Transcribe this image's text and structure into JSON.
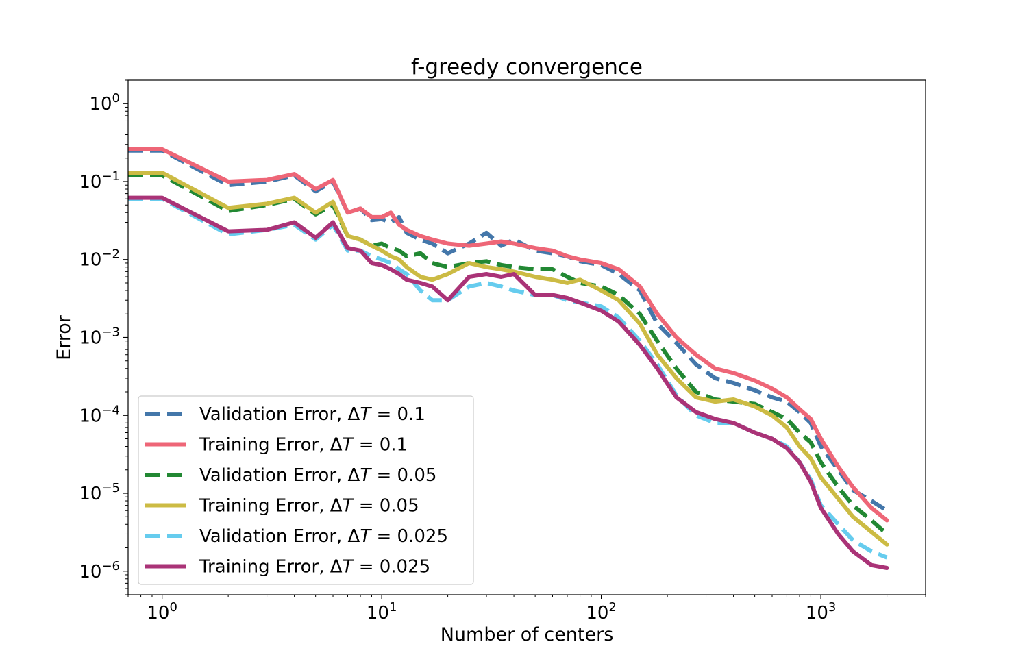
{
  "chart_data": {
    "type": "line",
    "title": "f-greedy convergence",
    "xlabel": "Number of centers",
    "ylabel": "Error",
    "xscale": "log",
    "yscale": "log",
    "xlim": [
      0.7,
      3000
    ],
    "ylim": [
      5e-07,
      2
    ],
    "x_ticks": [
      {
        "value": 1,
        "base": "10",
        "exp": "0"
      },
      {
        "value": 10,
        "base": "10",
        "exp": "1"
      },
      {
        "value": 100,
        "base": "10",
        "exp": "2"
      },
      {
        "value": 1000,
        "base": "10",
        "exp": "3"
      }
    ],
    "y_ticks": [
      {
        "value": 1,
        "base": "10",
        "exp": "0"
      },
      {
        "value": 0.1,
        "base": "10",
        "exp": "−1"
      },
      {
        "value": 0.01,
        "base": "10",
        "exp": "−2"
      },
      {
        "value": 0.001,
        "base": "10",
        "exp": "−3"
      },
      {
        "value": 0.0001,
        "base": "10",
        "exp": "−4"
      },
      {
        "value": 1e-05,
        "base": "10",
        "exp": "−5"
      },
      {
        "value": 1e-06,
        "base": "10",
        "exp": "−6"
      }
    ],
    "legend_position": "lower-left",
    "series": [
      {
        "name_prefix": "Validation Error, Δ",
        "name_var": "T",
        "name_suffix": " = 0.1",
        "color": "#4477aa",
        "style": "dashed",
        "x": [
          0.7,
          1,
          2,
          3,
          4,
          5,
          6,
          7,
          8,
          9,
          10,
          11,
          12,
          13,
          15,
          17,
          20,
          25,
          30,
          35,
          40,
          50,
          60,
          70,
          80,
          100,
          120,
          150,
          180,
          220,
          270,
          330,
          400,
          500,
          600,
          700,
          800,
          900,
          1000,
          1200,
          1400,
          1700,
          2000
        ],
        "y": [
          0.25,
          0.25,
          0.09,
          0.1,
          0.12,
          0.075,
          0.1,
          0.04,
          0.045,
          0.032,
          0.033,
          0.03,
          0.035,
          0.022,
          0.018,
          0.016,
          0.012,
          0.016,
          0.022,
          0.015,
          0.018,
          0.013,
          0.012,
          0.011,
          0.0095,
          0.0085,
          0.0065,
          0.004,
          0.0015,
          0.00085,
          0.00045,
          0.0003,
          0.00026,
          0.00021,
          0.00017,
          0.00015,
          0.00011,
          8e-05,
          4e-05,
          2e-05,
          1.1e-05,
          8e-06,
          6e-06
        ]
      },
      {
        "name_prefix": "Training Error, Δ",
        "name_var": "T",
        "name_suffix": " = 0.1",
        "color": "#ee6677",
        "style": "solid",
        "x": [
          0.7,
          1,
          2,
          3,
          4,
          5,
          6,
          7,
          8,
          9,
          10,
          11,
          12,
          13,
          15,
          17,
          20,
          25,
          30,
          35,
          40,
          50,
          60,
          70,
          80,
          100,
          120,
          150,
          180,
          220,
          270,
          330,
          400,
          500,
          600,
          700,
          800,
          900,
          1000,
          1200,
          1400,
          1700,
          2000
        ],
        "y": [
          0.26,
          0.26,
          0.1,
          0.105,
          0.125,
          0.08,
          0.105,
          0.04,
          0.045,
          0.035,
          0.035,
          0.04,
          0.028,
          0.024,
          0.02,
          0.018,
          0.016,
          0.015,
          0.016,
          0.017,
          0.016,
          0.014,
          0.013,
          0.011,
          0.01,
          0.009,
          0.0075,
          0.0045,
          0.002,
          0.001,
          0.0006,
          0.0004,
          0.00035,
          0.00028,
          0.00022,
          0.00017,
          0.00012,
          9e-05,
          5e-05,
          2.2e-05,
          1.2e-05,
          6.5e-06,
          4.5e-06
        ]
      },
      {
        "name_prefix": "Validation Error, Δ",
        "name_var": "T",
        "name_suffix": " = 0.05",
        "color": "#228833",
        "style": "dashed",
        "x": [
          0.7,
          1,
          2,
          3,
          4,
          5,
          6,
          7,
          8,
          9,
          10,
          11,
          12,
          13,
          15,
          17,
          20,
          25,
          30,
          35,
          40,
          50,
          60,
          70,
          80,
          100,
          120,
          150,
          180,
          220,
          270,
          330,
          400,
          500,
          600,
          700,
          800,
          900,
          1000,
          1200,
          1400,
          1700,
          2000
        ],
        "y": [
          0.12,
          0.12,
          0.042,
          0.05,
          0.06,
          0.038,
          0.05,
          0.02,
          0.018,
          0.015,
          0.016,
          0.014,
          0.013,
          0.011,
          0.012,
          0.009,
          0.008,
          0.009,
          0.0095,
          0.0085,
          0.008,
          0.0075,
          0.0075,
          0.006,
          0.005,
          0.0045,
          0.0035,
          0.002,
          0.0009,
          0.0004,
          0.0002,
          0.00016,
          0.00015,
          0.00014,
          0.00011,
          9e-05,
          6e-05,
          4.5e-05,
          2.5e-05,
          1.2e-05,
          7e-06,
          4.5e-06,
          3e-06
        ]
      },
      {
        "name_prefix": "Training Error, Δ",
        "name_var": "T",
        "name_suffix": " = 0.05",
        "color": "#ccbb44",
        "style": "solid",
        "x": [
          0.7,
          1,
          2,
          3,
          4,
          5,
          6,
          7,
          8,
          9,
          10,
          11,
          12,
          13,
          15,
          17,
          20,
          25,
          30,
          35,
          40,
          50,
          60,
          70,
          80,
          100,
          120,
          150,
          180,
          220,
          270,
          330,
          400,
          500,
          600,
          700,
          800,
          900,
          1000,
          1200,
          1400,
          1700,
          2000
        ],
        "y": [
          0.13,
          0.13,
          0.046,
          0.052,
          0.062,
          0.04,
          0.055,
          0.02,
          0.018,
          0.015,
          0.013,
          0.011,
          0.01,
          0.008,
          0.006,
          0.0055,
          0.0065,
          0.009,
          0.008,
          0.0075,
          0.007,
          0.006,
          0.0055,
          0.005,
          0.0055,
          0.004,
          0.003,
          0.0015,
          0.0006,
          0.0003,
          0.00017,
          0.00015,
          0.00016,
          0.00013,
          0.0001,
          7e-05,
          4e-05,
          2.8e-05,
          1.6e-05,
          8.5e-06,
          5e-06,
          3.2e-06,
          2.2e-06
        ]
      },
      {
        "name_prefix": "Validation Error, Δ",
        "name_var": "T",
        "name_suffix": " = 0.025",
        "color": "#66ccee",
        "style": "dashed",
        "x": [
          0.7,
          1,
          2,
          3,
          4,
          5,
          6,
          7,
          8,
          9,
          10,
          11,
          12,
          13,
          15,
          17,
          20,
          25,
          30,
          35,
          40,
          50,
          60,
          70,
          80,
          100,
          120,
          150,
          180,
          220,
          270,
          330,
          400,
          500,
          600,
          700,
          800,
          900,
          1000,
          1200,
          1400,
          1700,
          2000
        ],
        "y": [
          0.06,
          0.06,
          0.021,
          0.024,
          0.028,
          0.018,
          0.028,
          0.013,
          0.013,
          0.011,
          0.01,
          0.009,
          0.0075,
          0.0065,
          0.004,
          0.003,
          0.003,
          0.0045,
          0.005,
          0.0045,
          0.004,
          0.0035,
          0.0035,
          0.003,
          0.0028,
          0.0025,
          0.0018,
          0.0009,
          0.00045,
          0.00018,
          0.0001,
          8e-05,
          8e-05,
          6e-05,
          5e-05,
          4e-05,
          2.5e-05,
          1.5e-05,
          7e-06,
          4e-06,
          2.5e-06,
          1.8e-06,
          1.5e-06
        ]
      },
      {
        "name_prefix": "Training Error, Δ",
        "name_var": "T",
        "name_suffix": " = 0.025",
        "color": "#aa3377",
        "style": "solid",
        "x": [
          0.7,
          1,
          2,
          3,
          4,
          5,
          6,
          7,
          8,
          9,
          10,
          11,
          12,
          13,
          15,
          17,
          20,
          25,
          30,
          35,
          40,
          50,
          60,
          70,
          80,
          100,
          120,
          150,
          180,
          220,
          270,
          330,
          400,
          500,
          600,
          700,
          800,
          900,
          1000,
          1200,
          1400,
          1700,
          2000
        ],
        "y": [
          0.062,
          0.062,
          0.023,
          0.024,
          0.03,
          0.019,
          0.03,
          0.014,
          0.013,
          0.009,
          0.0085,
          0.0075,
          0.0065,
          0.0055,
          0.005,
          0.0045,
          0.003,
          0.006,
          0.0065,
          0.006,
          0.0065,
          0.0035,
          0.0035,
          0.0032,
          0.0028,
          0.0022,
          0.0016,
          0.0008,
          0.0004,
          0.00017,
          0.00011,
          9e-05,
          8e-05,
          6e-05,
          5e-05,
          3.8e-05,
          2.5e-05,
          1.4e-05,
          6.5e-06,
          3e-06,
          1.8e-06,
          1.2e-06,
          1.1e-06
        ]
      }
    ]
  }
}
